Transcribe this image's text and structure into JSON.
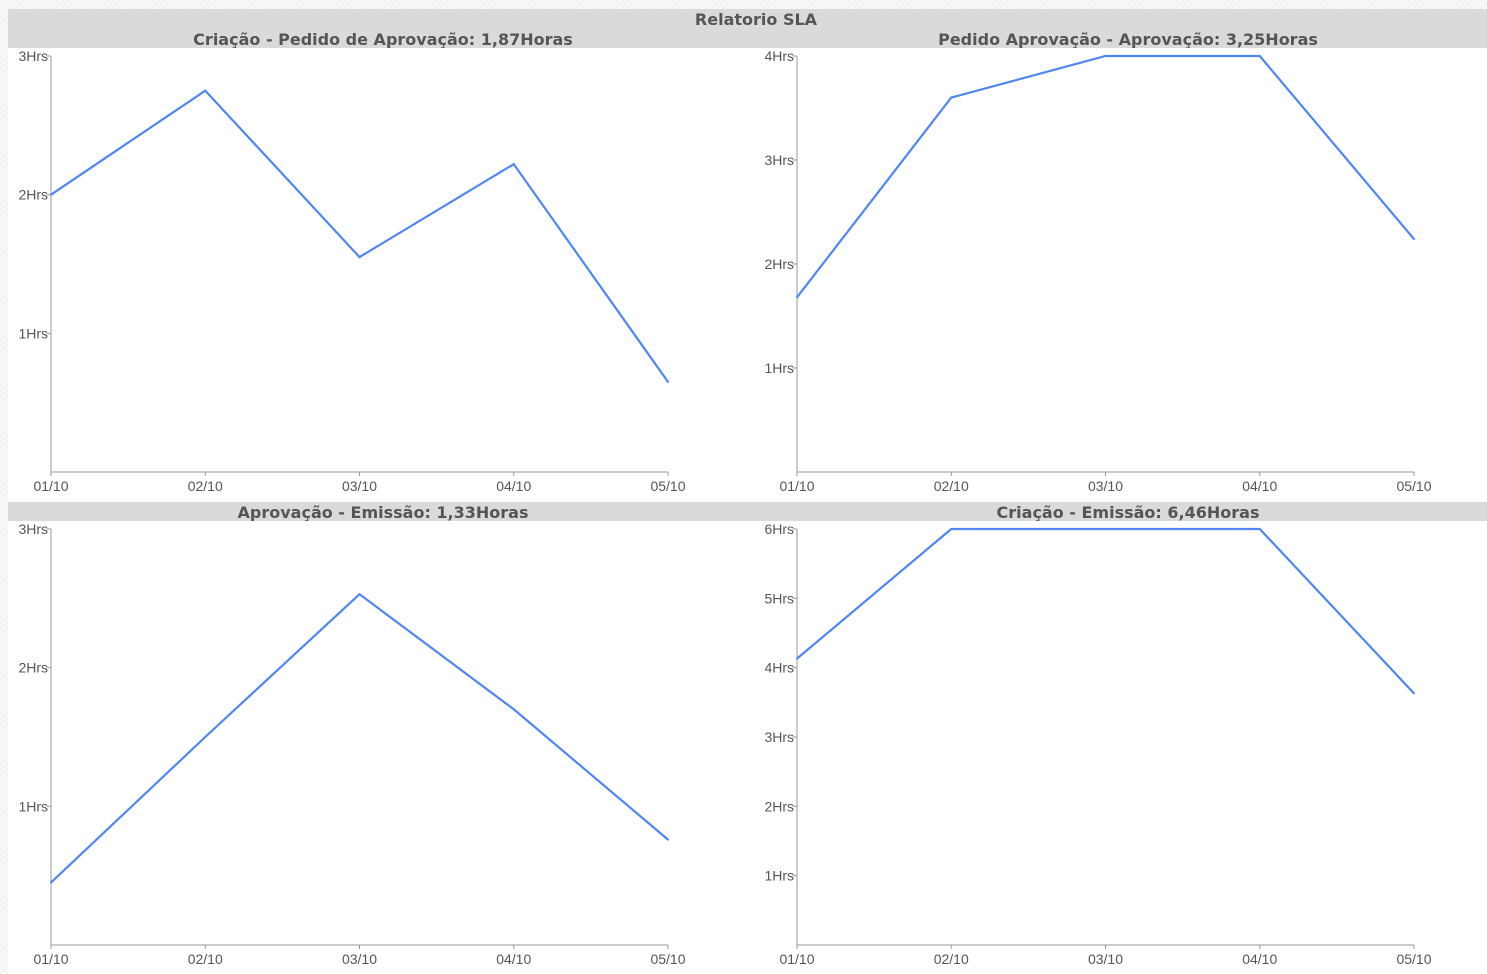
{
  "report_title": "Relatorio SLA",
  "line_color": "#4f86f2",
  "chart_data": [
    {
      "type": "line",
      "title": "Criação - Pedido de Aprovação: 1,87Horas",
      "categories": [
        "01/10",
        "02/10",
        "03/10",
        "04/10",
        "05/10"
      ],
      "series": [
        {
          "values": [
            2.0,
            2.75,
            1.55,
            2.22,
            0.65
          ]
        }
      ],
      "yticks": [
        1,
        2,
        3
      ],
      "ytick_labels": [
        "1Hrs",
        "2Hrs",
        "3Hrs"
      ],
      "ylim": [
        0,
        3
      ],
      "xlabel": "",
      "ylabel": "",
      "grid": false
    },
    {
      "type": "line",
      "title": "Pedido Aprovação - Aprovação: 3,25Horas",
      "categories": [
        "01/10",
        "02/10",
        "03/10",
        "04/10",
        "05/10"
      ],
      "series": [
        {
          "values": [
            1.68,
            3.6,
            4.0,
            4.0,
            2.24
          ]
        }
      ],
      "yticks": [
        1,
        2,
        3,
        4
      ],
      "ytick_labels": [
        "1Hrs",
        "2Hrs",
        "3Hrs",
        "4Hrs"
      ],
      "ylim": [
        0,
        4
      ],
      "xlabel": "",
      "ylabel": "",
      "grid": false
    },
    {
      "type": "line",
      "title": "Aprovação - Emissão: 1,33Horas",
      "categories": [
        "01/10",
        "02/10",
        "03/10",
        "04/10",
        "05/10"
      ],
      "series": [
        {
          "values": [
            0.45,
            1.5,
            2.53,
            1.7,
            0.76
          ]
        }
      ],
      "yticks": [
        1,
        2,
        3
      ],
      "ytick_labels": [
        "1Hrs",
        "2Hrs",
        "3Hrs"
      ],
      "ylim": [
        0,
        3
      ],
      "xlabel": "",
      "ylabel": "",
      "grid": false
    },
    {
      "type": "line",
      "title": "Criação - Emissão: 6,46Horas",
      "categories": [
        "01/10",
        "02/10",
        "03/10",
        "04/10",
        "05/10"
      ],
      "series": [
        {
          "values": [
            4.13,
            6.0,
            6.0,
            6.0,
            3.63
          ]
        }
      ],
      "yticks": [
        1,
        2,
        3,
        4,
        5,
        6
      ],
      "ytick_labels": [
        "1Hrs",
        "2Hrs",
        "3Hrs",
        "4Hrs",
        "5Hrs",
        "6Hrs"
      ],
      "ylim": [
        0,
        6
      ],
      "xlabel": "",
      "ylabel": "",
      "grid": false
    }
  ]
}
